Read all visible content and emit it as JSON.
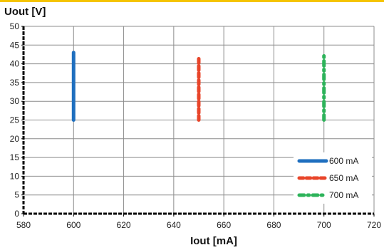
{
  "chart_data": {
    "type": "line",
    "title": "",
    "ylabel": "Uout [V]",
    "xlabel": "Iout [mA]",
    "xlim": [
      580,
      720
    ],
    "ylim": [
      0,
      50
    ],
    "x_ticks": [
      580,
      600,
      620,
      640,
      660,
      680,
      700,
      720
    ],
    "y_ticks": [
      0,
      5,
      10,
      15,
      20,
      25,
      30,
      35,
      40,
      45,
      50
    ],
    "grid": true,
    "legend_position": "bottom-right",
    "series": [
      {
        "name": "600 mA",
        "style": "solid",
        "color": "#1f6fbf",
        "x": [
          600,
          600
        ],
        "y": [
          25,
          43
        ]
      },
      {
        "name": "650 mA",
        "style": "dashed",
        "color": "#e8452a",
        "x": [
          650,
          650
        ],
        "y": [
          25,
          41.5
        ]
      },
      {
        "name": "700 mA",
        "style": "dash-dot",
        "color": "#2db35a",
        "x": [
          700,
          700
        ],
        "y": [
          25,
          43
        ]
      }
    ]
  },
  "colors": {
    "top_rule": "#f5c400",
    "grid": "#8c8c8c",
    "axis": "#000000"
  }
}
